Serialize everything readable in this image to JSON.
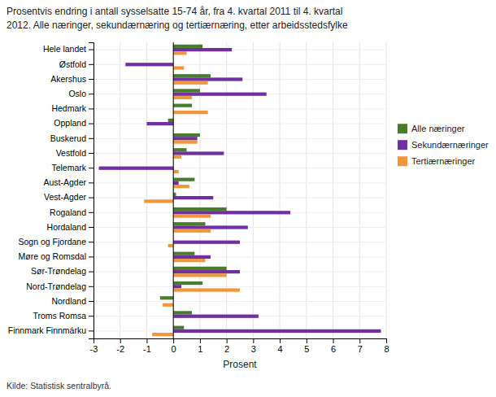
{
  "chart_data": {
    "type": "bar",
    "orientation": "horizontal",
    "title": "Prosentvis endring i antall sysselsatte 15-74 år, fra 4. kvartal 2011 til 4. kvartal",
    "subtitle": "2012. Alle næringer, sekundærnæring og tertiærnæring, etter arbeidsstedsfylke",
    "annotations": [
      "Kilde: Statistisk sentralbyrå."
    ],
    "xlabel": "Prosent",
    "categories": [
      "Hele landet",
      "Østfold",
      "Akershus",
      "Oslo",
      "Hedmark",
      "Oppland",
      "Buskerud",
      "Vestfold",
      "Telemark",
      "Aust-Agder",
      "Vest-Agder",
      "Rogaland",
      "Hordaland",
      "Sogn og Fjordane",
      "Møre og Romsdal",
      "Sør-Trøndelag",
      "Nord-Trøndelag",
      "Nordland",
      "Troms Romsa",
      "Finnmark Finnmárku"
    ],
    "series": [
      {
        "name": "Alle næringer",
        "color": "#4a7c2e",
        "values": [
          1.1,
          0.0,
          1.4,
          1.0,
          0.7,
          -0.2,
          1.0,
          0.5,
          0.0,
          0.8,
          0.1,
          2.0,
          1.2,
          0.0,
          0.8,
          2.0,
          1.1,
          -0.5,
          0.7,
          0.4
        ]
      },
      {
        "name": "Sekundærnæringer",
        "color": "#7030a0",
        "values": [
          2.2,
          -1.8,
          2.6,
          3.5,
          0.0,
          -1.0,
          0.9,
          1.9,
          -2.8,
          0.2,
          1.5,
          4.4,
          2.8,
          2.5,
          1.4,
          2.5,
          0.3,
          0.0,
          3.2,
          7.8
        ]
      },
      {
        "name": "Tertiærnæringer",
        "color": "#f0963c",
        "values": [
          0.5,
          0.4,
          1.3,
          0.7,
          1.3,
          0.0,
          0.9,
          0.3,
          0.2,
          0.6,
          -1.1,
          1.4,
          1.4,
          -0.2,
          1.2,
          2.0,
          2.5,
          -0.4,
          0.0,
          -0.8
        ]
      }
    ],
    "xlim": [
      -3,
      8
    ],
    "xticks": [
      -3,
      -2,
      -1,
      0,
      1,
      2,
      3,
      4,
      5,
      6,
      7,
      8
    ],
    "grid": true,
    "legend": "right"
  }
}
